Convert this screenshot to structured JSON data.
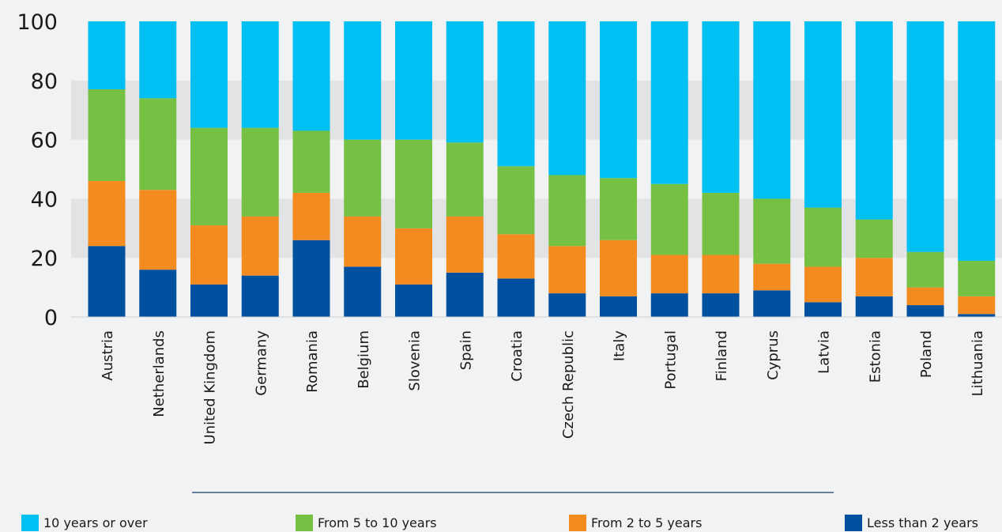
{
  "chart_data": {
    "type": "bar",
    "stacked": true,
    "categories": [
      "Austria",
      "Netherlands",
      "United Kingdom",
      "Germany",
      "Romania",
      "Belgium",
      "Slovenia",
      "Spain",
      "Croatia",
      "Czech Republic",
      "Italy",
      "Portugal",
      "Finland",
      "Cyprus",
      "Latvia",
      "Estonia",
      "Poland",
      "Lithuania"
    ],
    "series": [
      {
        "name": "Less than 2 years",
        "color": "#0050a0",
        "values": [
          24,
          16,
          11,
          14,
          26,
          17,
          11,
          15,
          13,
          8,
          7,
          8,
          8,
          9,
          5,
          7,
          4,
          1
        ]
      },
      {
        "name": "From 2 to 5 years",
        "color": "#f38b20",
        "values": [
          22,
          27,
          20,
          20,
          16,
          17,
          19,
          19,
          15,
          16,
          19,
          13,
          13,
          9,
          12,
          13,
          6,
          6
        ]
      },
      {
        "name": "From 5 to 10 years",
        "color": "#76c043",
        "values": [
          31,
          31,
          33,
          30,
          21,
          26,
          30,
          25,
          23,
          24,
          21,
          24,
          21,
          22,
          20,
          13,
          12,
          12
        ]
      },
      {
        "name": "10 years or over",
        "color": "#00bff3",
        "values": [
          23,
          26,
          36,
          36,
          37,
          40,
          40,
          41,
          49,
          52,
          53,
          55,
          58,
          60,
          63,
          67,
          78,
          81
        ]
      }
    ],
    "ylim": [
      0,
      100
    ],
    "yticks": [
      0,
      20,
      40,
      60,
      80,
      100
    ],
    "title": "",
    "xlabel": "",
    "ylabel": "",
    "band_color": "#e2e3e5",
    "legend_position": "bottom"
  },
  "legend": [
    {
      "label": "10 years or over",
      "color": "#00bff3"
    },
    {
      "label": "From 5 to 10 years",
      "color": "#76c043"
    },
    {
      "label": "From 2 to 5 years",
      "color": "#f38b20"
    },
    {
      "label": "Less than 2 years",
      "color": "#0050a0"
    }
  ]
}
